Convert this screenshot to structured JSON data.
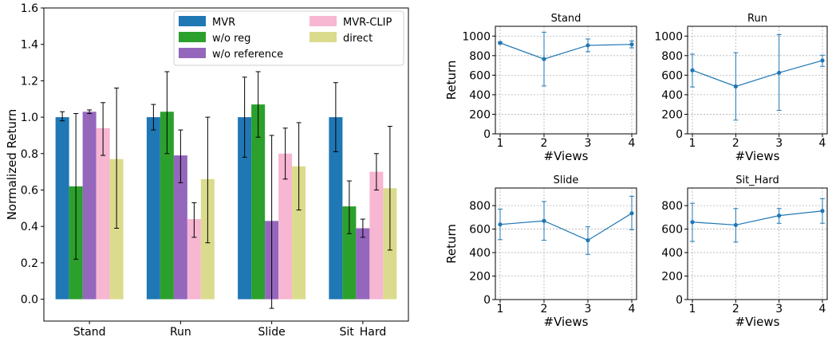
{
  "chart_data": [
    {
      "type": "bar",
      "ylabel": "Normalized Return",
      "xlabel": "",
      "ylim": [
        -0.12,
        1.6
      ],
      "yticks": [
        "0.0",
        "0.2",
        "0.4",
        "0.6",
        "0.8",
        "1.0",
        "1.2",
        "1.4",
        "1.6"
      ],
      "categories": [
        "Stand",
        "Run",
        "Slide",
        "Sit_Hard"
      ],
      "legend_position": "top-right",
      "series": [
        {
          "name": "MVR",
          "color": "#1f77b4",
          "values": [
            1.0,
            1.0,
            1.0,
            1.0
          ],
          "err_low": [
            0.98,
            0.93,
            0.78,
            0.81
          ],
          "err_high": [
            1.03,
            1.07,
            1.22,
            1.19
          ]
        },
        {
          "name": "w/o reg",
          "color": "#2ca02c",
          "values": [
            0.62,
            1.03,
            1.07,
            0.51
          ],
          "err_low": [
            0.22,
            0.8,
            0.89,
            0.36
          ],
          "err_high": [
            1.02,
            1.25,
            1.25,
            0.65
          ]
        },
        {
          "name": "w/o reference",
          "color": "#9467bd",
          "values": [
            1.03,
            0.79,
            0.43,
            0.39
          ],
          "err_low": [
            1.02,
            0.64,
            -0.05,
            0.34
          ],
          "err_high": [
            1.04,
            0.93,
            0.9,
            0.44
          ]
        },
        {
          "name": "MVR-CLIP",
          "color": "#f7b6d2",
          "values": [
            0.94,
            0.44,
            0.8,
            0.7
          ],
          "err_low": [
            0.79,
            0.34,
            0.66,
            0.6
          ],
          "err_high": [
            1.08,
            0.53,
            0.94,
            0.8
          ]
        },
        {
          "name": "direct",
          "color": "#dbdb8d",
          "values": [
            0.77,
            0.66,
            0.73,
            0.61
          ],
          "err_low": [
            0.39,
            0.31,
            0.49,
            0.27
          ],
          "err_high": [
            1.16,
            1.0,
            0.97,
            0.95
          ]
        }
      ]
    },
    {
      "type": "line",
      "title": "Stand",
      "xlabel": "#Views",
      "ylabel": "Return",
      "x": [
        1,
        2,
        3,
        4
      ],
      "ylim": [
        0,
        1100
      ],
      "yticks": [
        "0",
        "200",
        "400",
        "600",
        "800",
        "1000"
      ],
      "values": [
        930,
        765,
        905,
        915
      ],
      "err_low": [
        920,
        490,
        840,
        880
      ],
      "err_high": [
        940,
        1040,
        970,
        950
      ]
    },
    {
      "type": "line",
      "title": "Run",
      "xlabel": "#Views",
      "ylabel": "",
      "x": [
        1,
        2,
        3,
        4
      ],
      "ylim": [
        0,
        1100
      ],
      "yticks": [
        "0",
        "200",
        "400",
        "600",
        "800",
        "1000"
      ],
      "values": [
        650,
        485,
        625,
        750
      ],
      "err_low": [
        480,
        140,
        240,
        690
      ],
      "err_high": [
        815,
        830,
        1015,
        805
      ]
    },
    {
      "type": "line",
      "title": "Slide",
      "xlabel": "#Views",
      "ylabel": "Return",
      "x": [
        1,
        2,
        3,
        4
      ],
      "ylim": [
        0,
        950
      ],
      "yticks": [
        "0",
        "200",
        "400",
        "600",
        "800"
      ],
      "values": [
        640,
        670,
        505,
        735
      ],
      "err_low": [
        510,
        505,
        385,
        595
      ],
      "err_high": [
        770,
        835,
        620,
        880
      ]
    },
    {
      "type": "line",
      "title": "Sit_Hard",
      "xlabel": "#Views",
      "ylabel": "",
      "x": [
        1,
        2,
        3,
        4
      ],
      "ylim": [
        0,
        950
      ],
      "yticks": [
        "0",
        "200",
        "400",
        "600",
        "800"
      ],
      "values": [
        660,
        635,
        715,
        755
      ],
      "err_low": [
        495,
        490,
        650,
        650
      ],
      "err_high": [
        820,
        775,
        775,
        860
      ]
    }
  ]
}
